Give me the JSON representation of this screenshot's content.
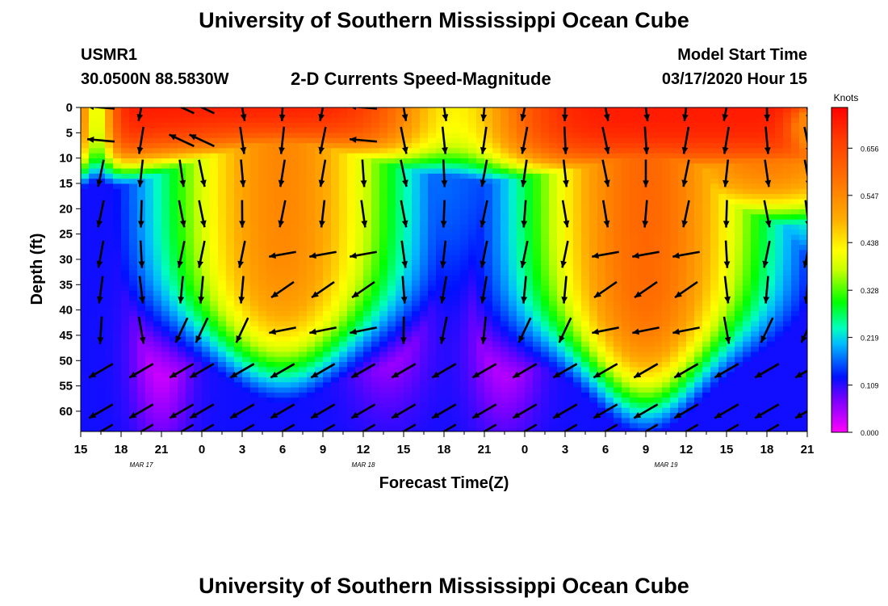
{
  "page": {
    "title_top": "University of Southern Mississippi Ocean Cube",
    "title_bottom": "University of Southern Mississippi Ocean Cube",
    "station_id": "USMR1",
    "station_coords": "30.0500N 88.5830W",
    "plot_title": "2-D Currents Speed-Magnitude",
    "model_start_label": "Model Start Time",
    "model_start_value": "03/17/2020 Hour 15"
  },
  "chart_data": {
    "type": "heatmap",
    "title": "2-D Currents Speed-Magnitude",
    "xlabel": "Forecast Time(Z)",
    "ylabel": "Depth (ft)",
    "x_tick_labels": [
      "15",
      "18",
      "21",
      "0",
      "3",
      "6",
      "9",
      "12",
      "15",
      "18",
      "21",
      "0",
      "3",
      "6",
      "9",
      "12",
      "15",
      "18",
      "21"
    ],
    "date_labels": [
      {
        "label": "MAR 17",
        "tick": 1.5
      },
      {
        "label": "MAR 18",
        "tick": 7
      },
      {
        "label": "MAR 19",
        "tick": 14.5
      }
    ],
    "y_ticks": [
      0,
      5,
      10,
      15,
      20,
      25,
      30,
      35,
      40,
      45,
      50,
      55,
      60
    ],
    "ylim": [
      0,
      64
    ],
    "colorbar": {
      "unit": "Knots",
      "ticks": [
        "0.656",
        "0.547",
        "0.438",
        "0.328",
        "0.219",
        "0.109",
        "0.000"
      ],
      "min": 0.0,
      "max": 0.75
    },
    "grid": false,
    "legend": "colorbar-right",
    "field_description": "Current speed (knots) as a function of forecast time and depth, with current direction vectors",
    "arrow_columns_x": [
      0.5,
      1.5,
      2.5,
      3.0,
      4.0,
      5.0,
      6.0,
      7.0,
      8.0,
      9.0,
      10.0,
      11.0,
      12.0,
      13.0,
      14.0,
      15.0,
      16.0,
      17.0,
      18.0
    ],
    "arrow_rows_depth": [
      0,
      6.5,
      13,
      21,
      29,
      36,
      44,
      52,
      60,
      64
    ]
  }
}
